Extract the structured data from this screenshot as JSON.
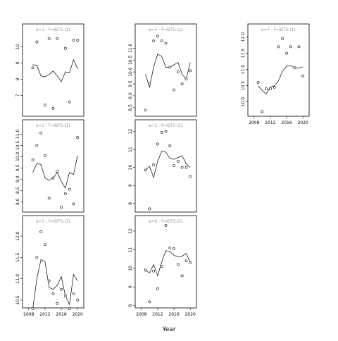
{
  "chart_data": {
    "type": "scatter",
    "xlabel": "Year",
    "panels": [
      {
        "strip": "a=1 : f=IBTS-Q1",
        "xlim": [
          2007,
          2021
        ],
        "ylim": [
          5.8,
          10.8
        ],
        "yticks": [
          7,
          8,
          9,
          10
        ],
        "xticks": [],
        "line": {
          "x": [
            2009,
            2010,
            2011,
            2012,
            2013,
            2014,
            2015,
            2016,
            2017,
            2018,
            2019,
            2020
          ],
          "y": [
            8.9,
            8.85,
            8.2,
            8.15,
            8.3,
            8.5,
            8.2,
            7.85,
            8.45,
            8.4,
            9.2,
            8.65
          ]
        },
        "points": {
          "x": [
            2009,
            2010,
            2012,
            2013,
            2014,
            2015,
            2017,
            2018,
            2019,
            2020
          ],
          "y": [
            8.7,
            10.3,
            6.4,
            10.5,
            6.2,
            10.5,
            9.9,
            6.6,
            10.4,
            10.4
          ]
        }
      },
      {
        "strip": "a=4 : f=IBTS-Q1",
        "xlim": [
          2007,
          2021
        ],
        "ylim": [
          8.2,
          11.6
        ],
        "yticks": [
          8.5,
          9.0,
          9.5,
          10.0,
          10.5,
          11.0
        ],
        "xticks": [],
        "line": {
          "x": [
            2009,
            2010,
            2011,
            2012,
            2013,
            2014,
            2015,
            2016,
            2017,
            2018,
            2019,
            2020
          ],
          "y": [
            9.9,
            9.35,
            10.2,
            10.75,
            10.65,
            10.2,
            10.2,
            10.3,
            10.4,
            9.9,
            9.7,
            10.4
          ]
        },
        "points": {
          "x": [
            2009,
            2010,
            2011,
            2012,
            2013,
            2014,
            2015,
            2016,
            2017,
            2018,
            2019,
            2020
          ],
          "y": [
            8.4,
            9.5,
            11.3,
            11.5,
            11.3,
            11.2,
            10.2,
            9.25,
            10.0,
            9.5,
            9.7,
            10.05
          ]
        }
      },
      {
        "strip": "a=7 : f=IBTS-Q1",
        "xlim": [
          2007,
          2021
        ],
        "ylim": [
          9.6,
          12.1
        ],
        "yticks": [
          10.0,
          10.5,
          11.0,
          11.5,
          12.0
        ],
        "xticks": [
          2008,
          2012,
          2016,
          2020
        ],
        "line": {
          "x": [
            2009,
            2010,
            2011,
            2012,
            2013,
            2014,
            2015,
            2016,
            2017,
            2018,
            2019,
            2020
          ],
          "y": [
            10.5,
            10.35,
            10.25,
            10.45,
            10.5,
            10.65,
            10.95,
            11.1,
            11.12,
            11.05,
            11.05,
            11.08
          ]
        },
        "points": {
          "x": [
            2009,
            2010,
            2011,
            2012,
            2013,
            2014,
            2015,
            2016,
            2017,
            2018,
            2019,
            2020
          ],
          "y": [
            10.6,
            9.7,
            10.4,
            10.4,
            10.45,
            11.7,
            11.95,
            11.5,
            11.7,
            11.05,
            11.7,
            10.8
          ]
        }
      },
      {
        "strip": "a=2 : f=IBTS-Q1",
        "xlim": [
          2007,
          2021
        ],
        "ylim": [
          7.6,
          11.2
        ],
        "yticks": [
          8.0,
          8.5,
          9.0,
          9.5,
          10.0,
          10.5,
          11.0
        ],
        "xticks": [],
        "line": {
          "x": [
            2009,
            2010,
            2011,
            2012,
            2013,
            2014,
            2015,
            2016,
            2017,
            2018,
            2019,
            2020
          ],
          "y": [
            9.3,
            9.7,
            9.65,
            9.05,
            8.95,
            9.05,
            9.3,
            8.9,
            8.6,
            9.3,
            9.2,
            10.05
          ]
        },
        "points": {
          "x": [
            2009,
            2010,
            2011,
            2012,
            2013,
            2014,
            2015,
            2016,
            2017,
            2018,
            2019,
            2020
          ],
          "y": [
            9.85,
            10.5,
            11.05,
            10.05,
            8.15,
            9.05,
            9.35,
            7.75,
            8.35,
            8.55,
            7.9,
            10.85
          ]
        }
      },
      {
        "strip": "a=5 : f=IBTS-Q1",
        "xlim": [
          2007,
          2021
        ],
        "ylim": [
          7.6,
          12.1
        ],
        "yticks": [
          8,
          9,
          10,
          11,
          12
        ],
        "xticks": [],
        "line": {
          "x": [
            2009,
            2010,
            2011,
            2012,
            2013,
            2014,
            2015,
            2016,
            2017,
            2018,
            2019,
            2020
          ],
          "y": [
            9.85,
            10.05,
            9.45,
            10.35,
            10.9,
            10.85,
            10.5,
            10.45,
            10.55,
            10.65,
            10.2,
            10.0
          ]
        },
        "points": {
          "x": [
            2009,
            2010,
            2011,
            2012,
            2013,
            2014,
            2015,
            2016,
            2017,
            2018,
            2019,
            2020
          ],
          "y": [
            9.85,
            7.7,
            10.15,
            11.3,
            11.95,
            12.0,
            11.2,
            10.1,
            10.35,
            10.0,
            10.0,
            9.5
          ]
        }
      },
      {
        "strip": "a=3 : f=IBTS-Q1",
        "xlim": [
          2007,
          2021
        ],
        "ylim": [
          10.35,
          12.25
        ],
        "yticks": [
          10.5,
          11.0,
          11.5,
          12.0
        ],
        "xticks": [
          2008,
          2012,
          2016,
          2020
        ],
        "line": {
          "x": [
            2009,
            2010,
            2011,
            2012,
            2013,
            2014,
            2015,
            2016,
            2017,
            2018,
            2019,
            2020
          ],
          "y": [
            10.3,
            11.0,
            11.45,
            11.4,
            10.8,
            10.75,
            10.85,
            11.05,
            10.6,
            10.4,
            11.1,
            10.95
          ]
        },
        "points": {
          "x": [
            2009,
            2010,
            2011,
            2012,
            2013,
            2014,
            2015,
            2016,
            2017,
            2018,
            2019,
            2020
          ],
          "y": [
            10.3,
            11.5,
            12.1,
            11.8,
            10.95,
            10.65,
            10.42,
            10.75,
            10.6,
            10.3,
            10.65,
            10.5
          ]
        }
      },
      {
        "strip": "a=6 : f=IBTS-Q1",
        "xlim": [
          2007,
          2021
        ],
        "ylim": [
          7.95,
          12.3
        ],
        "yticks": [
          8,
          9,
          10,
          11,
          12
        ],
        "xticks": [
          2008,
          2012,
          2016,
          2020
        ],
        "line": {
          "x": [
            2009,
            2010,
            2011,
            2012,
            2013,
            2014,
            2015,
            2016,
            2017,
            2018,
            2019,
            2020
          ],
          "y": [
            9.9,
            9.75,
            10.2,
            9.6,
            10.35,
            10.95,
            10.9,
            10.7,
            10.6,
            10.65,
            10.8,
            10.3
          ]
        },
        "points": {
          "x": [
            2009,
            2010,
            2011,
            2012,
            2013,
            2014,
            2015,
            2016,
            2017,
            2018,
            2019,
            2020
          ],
          "y": [
            9.9,
            8.2,
            9.85,
            8.9,
            10.1,
            12.3,
            11.1,
            11.05,
            10.2,
            9.6,
            10.4,
            10.3
          ]
        }
      }
    ]
  }
}
